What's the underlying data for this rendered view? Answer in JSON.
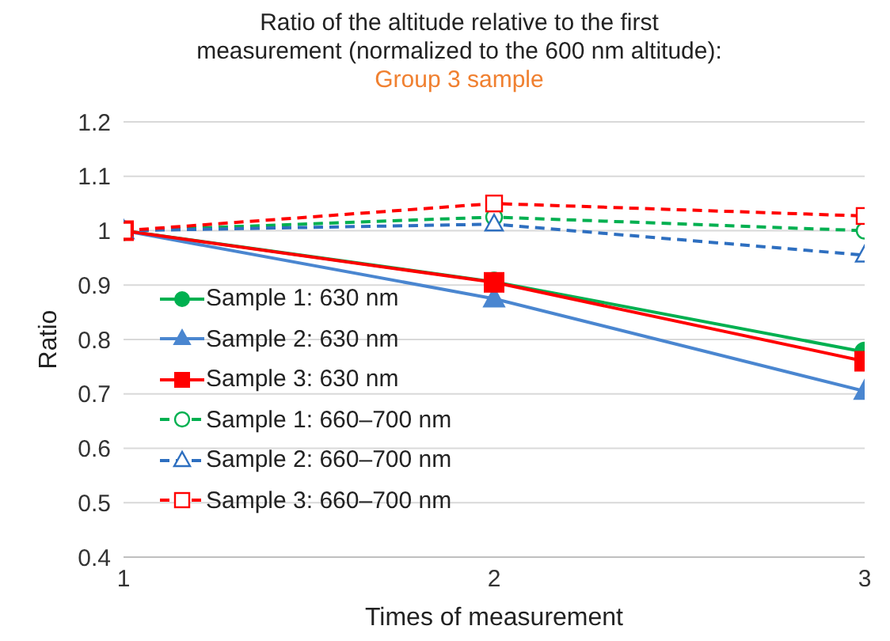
{
  "chart_data": {
    "type": "line",
    "title": "Ratio of the altitude relative to the first measurement (normalized to the 600 nm altitude):",
    "subtitle": "Group 3 sample",
    "xlabel": "Times of measurement",
    "ylabel": "Ratio",
    "x": [
      1,
      2,
      3
    ],
    "xlim": [
      1,
      3
    ],
    "xticks": [
      1,
      2,
      3
    ],
    "ylim": [
      0.4,
      1.2
    ],
    "yticks": [
      0.4,
      0.5,
      0.6,
      0.7,
      0.8,
      0.9,
      1,
      1.1,
      1.2
    ],
    "grid": "y",
    "legend": "bottom left",
    "series": [
      {
        "name": "Sample 1: 630 nm",
        "color": "#00b050",
        "values": [
          1,
          0.906,
          0.777
        ],
        "marker": "circle",
        "line_style": "solid"
      },
      {
        "name": "Sample 2: 630 nm",
        "color": "#4a86d0",
        "values": [
          1,
          0.875,
          0.705
        ],
        "marker": "triangle",
        "line_style": "solid"
      },
      {
        "name": "Sample 3: 630 nm",
        "color": "#ff0000",
        "values": [
          1,
          0.905,
          0.76
        ],
        "marker": "square",
        "line_style": "solid"
      },
      {
        "name": "Sample 1: 660–700 nm",
        "color": "#00b050",
        "values": [
          1,
          1.025,
          1.0
        ],
        "marker": "circle",
        "line_style": "dashed"
      },
      {
        "name": "Sample 2: 660–700 nm",
        "color": "#2e6fc0",
        "values": [
          1,
          1.012,
          0.955
        ],
        "marker": "triangle",
        "line_style": "dashed"
      },
      {
        "name": "Sample 3: 660–700 nm",
        "color": "#ff0000",
        "values": [
          1,
          1.05,
          1.027
        ],
        "marker": "square",
        "line_style": "dashed"
      }
    ]
  }
}
